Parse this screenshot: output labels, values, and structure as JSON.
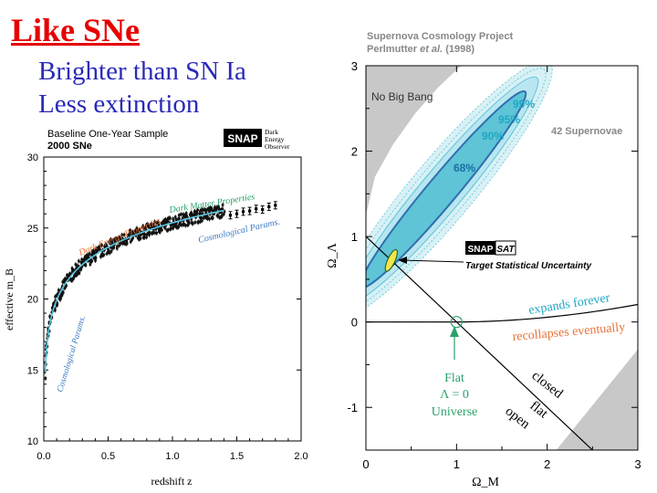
{
  "slide": {
    "title": "Like SNe",
    "bullets": [
      "Brighter than SN Ia",
      "Less extinction"
    ]
  },
  "colors": {
    "title": "#e60000",
    "bullets": "#2a2ab8",
    "hubble_points": "#111111",
    "fit_curve": "#57c7e3",
    "dark_energy_label": "#e8733a",
    "dark_matter_label": "#2aa26a",
    "cosmo_label": "#3a78c2",
    "contour_outer": "#d8f1f6",
    "contour_mid": "#b9e6f0",
    "contour_inner": "#5ec4d6",
    "contour_line": "#2f6fae",
    "no_big_bang": "#c8c8c8",
    "snap_ellipse": "#f3e64a"
  },
  "chart_data": [
    {
      "type": "scatter",
      "header": {
        "line1": "Baseline One-Year Sample",
        "line2": "2000 SNe"
      },
      "logo": {
        "box": "SNAP",
        "text": [
          "Dark",
          "Energy",
          "Observer"
        ]
      },
      "xlabel": "redshift z",
      "ylabel": "effective m_B",
      "xlim": [
        0,
        2.0
      ],
      "ylim": [
        10,
        30
      ],
      "xticks": [
        "0.0",
        "0.5",
        "1.0",
        "1.5",
        "2.0"
      ],
      "yticks": [
        "10",
        "15",
        "20",
        "25",
        "30"
      ],
      "dense_band": {
        "z_start": 0.01,
        "z_end": 1.4
      },
      "sparse_points": [
        {
          "z": 1.45,
          "m": 25.9
        },
        {
          "z": 1.5,
          "m": 26.0
        },
        {
          "z": 1.55,
          "m": 26.15
        },
        {
          "z": 1.6,
          "m": 26.2
        },
        {
          "z": 1.65,
          "m": 26.35
        },
        {
          "z": 1.7,
          "m": 26.3
        },
        {
          "z": 1.75,
          "m": 26.5
        },
        {
          "z": 1.8,
          "m": 26.6
        }
      ],
      "annotations": [
        {
          "text": "Dark Energy Properties",
          "region": "z 0.3-0.9, above curve",
          "color_key": "dark_energy_label"
        },
        {
          "text": "Dark Matter Properties",
          "region": "z 0.9-1.6, above curve",
          "color_key": "dark_matter_label"
        },
        {
          "text": "Cosmological Params.",
          "region": "z 1.2-1.85, below curve",
          "color_key": "cosmo_label"
        },
        {
          "text": "Cosmological Params.",
          "region": "z 0.1-0.3, rising along low-z edge",
          "color_key": "cosmo_label"
        }
      ]
    },
    {
      "type": "contour",
      "header": {
        "line1": "Supernova Cosmology Project",
        "line2_pre": "Perlmutter ",
        "line2_em": "et al.",
        "line2_post": " (1998)"
      },
      "xlabel": "Ω_M",
      "ylabel": "Ω_Λ",
      "xlim": [
        0,
        3
      ],
      "ylim": [
        -1.5,
        3
      ],
      "xticks": [
        "0",
        "1",
        "2",
        "3"
      ],
      "yticks": [
        "-1",
        "0",
        "1",
        "2",
        "3"
      ],
      "region_labels": {
        "no_big_bang": "No Big Bang",
        "sample": "42 Supernovae"
      },
      "confidence_levels": [
        "99%",
        "95%",
        "90%",
        "68%"
      ],
      "contour_center": {
        "omega_m": 0.85,
        "omega_lambda": 1.55
      },
      "snap": {
        "box": "SNAP",
        "suffix": "SAT",
        "label": "Target Statistical Uncertainty",
        "center": {
          "omega_m": 0.28,
          "omega_lambda": 0.72
        }
      },
      "flat_point": {
        "omega_m": 1,
        "omega_lambda": 0
      },
      "flat_label": [
        "Flat",
        "Λ = 0",
        "Universe"
      ],
      "line_labels": {
        "expands": "expands forever",
        "recollapses": "recollapses eventually",
        "closed": "closed",
        "flat": "flat",
        "open": "open"
      }
    }
  ]
}
